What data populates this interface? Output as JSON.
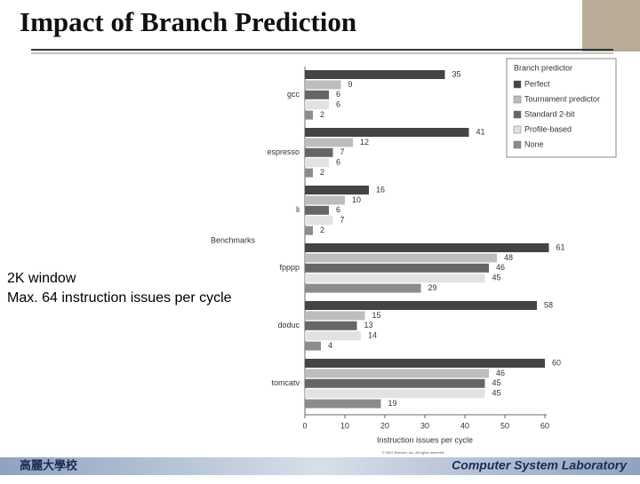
{
  "slide": {
    "title": "Impact of Branch Prediction",
    "notes": [
      "2K window",
      "Max. 64 instruction issues per cycle"
    ],
    "footer_left": "高麗大學校",
    "footer_right": "Computer System Laboratory",
    "copyright": "© 2007 Elsevier, Inc. All rights reserved."
  },
  "chart_data": {
    "type": "hbar",
    "categories": [
      "gcc",
      "espresso",
      "li",
      "fpppp",
      "doduc",
      "tomcatv"
    ],
    "series": [
      {
        "name": "Perfect",
        "color": "#444444",
        "values": [
          35,
          41,
          16,
          61,
          58,
          60
        ]
      },
      {
        "name": "Tournament predictor",
        "color": "#bdbdbd",
        "values": [
          9,
          12,
          10,
          48,
          15,
          46
        ]
      },
      {
        "name": "Standard 2-bit",
        "color": "#666666",
        "values": [
          6,
          7,
          6,
          46,
          13,
          45
        ]
      },
      {
        "name": "Profile-based",
        "color": "#e2e2e2",
        "values": [
          6,
          6,
          7,
          45,
          14,
          45
        ]
      },
      {
        "name": "None",
        "color": "#8c8c8c",
        "values": [
          2,
          2,
          2,
          29,
          4,
          19
        ]
      }
    ],
    "xlabel": "Instruction issues per cycle",
    "ylabel": "Benchmarks",
    "legend_title": "Branch predictor",
    "legend": "upper right",
    "xlim": [
      0,
      60
    ],
    "xticks": [
      0,
      10,
      20,
      30,
      40,
      50,
      60
    ]
  }
}
